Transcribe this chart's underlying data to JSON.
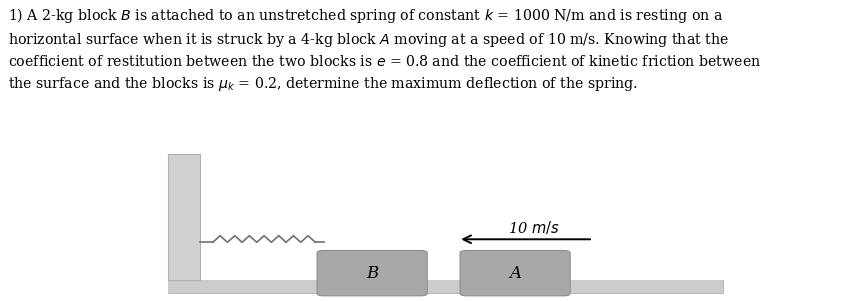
{
  "title_text": "1) A 2-kg block $B$ is attached to an unstretched spring of constant $k$ = 1000 N/m and is resting on a\nhorizontal surface when it is struck by a 4-kg block $A$ moving at a speed of 10 m/s. Knowing that the\ncoefficient of restitution between the two blocks is $e$ = 0.8 and the coefficient of kinetic friction between\nthe surface and the blocks is $\\mu_k$ = 0.2, determine the maximum deflection of the spring.",
  "bg_color": "#ffffff",
  "wall_color_light": "#d0d0d0",
  "wall_color_dark": "#b0b0b0",
  "floor_color": "#cccccc",
  "block_color": "#a8a8a8",
  "block_edge_color": "#888888",
  "spring_color": "#707070",
  "text_color": "#000000",
  "speed_label": "10 $m/s$",
  "block_B_label": "B",
  "block_A_label": "A",
  "arrow_color": "#000000"
}
